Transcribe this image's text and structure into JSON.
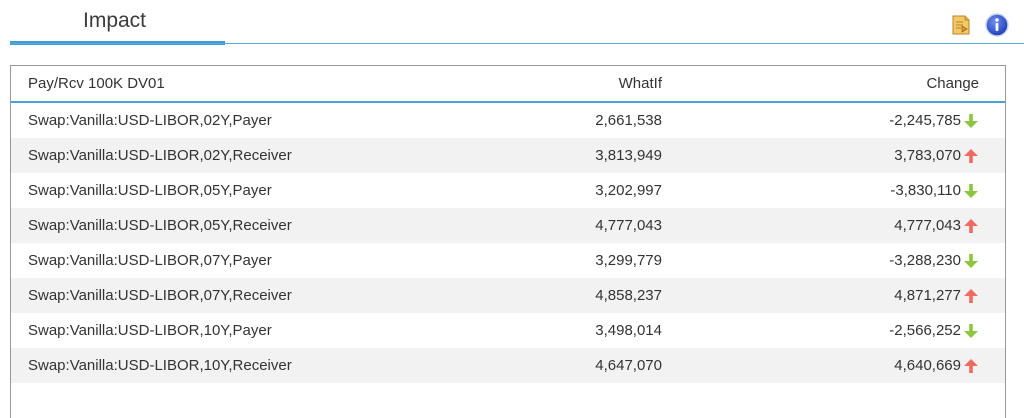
{
  "header": {
    "tab_label": "Impact",
    "icons": [
      "export-icon",
      "info-icon"
    ]
  },
  "table": {
    "columns": {
      "name": "Pay/Rcv 100K DV01",
      "whatif": "WhatIf",
      "change": "Change"
    },
    "rows": [
      {
        "name": "Swap:Vanilla:USD-LIBOR,02Y,Payer",
        "whatif": "2,661,538",
        "change": "-2,245,785",
        "direction": "down"
      },
      {
        "name": "Swap:Vanilla:USD-LIBOR,02Y,Receiver",
        "whatif": "3,813,949",
        "change": "3,783,070",
        "direction": "up"
      },
      {
        "name": "Swap:Vanilla:USD-LIBOR,05Y,Payer",
        "whatif": "3,202,997",
        "change": "-3,830,110",
        "direction": "down"
      },
      {
        "name": "Swap:Vanilla:USD-LIBOR,05Y,Receiver",
        "whatif": "4,777,043",
        "change": "4,777,043",
        "direction": "up"
      },
      {
        "name": "Swap:Vanilla:USD-LIBOR,07Y,Payer",
        "whatif": "3,299,779",
        "change": "-3,288,230",
        "direction": "down"
      },
      {
        "name": "Swap:Vanilla:USD-LIBOR,07Y,Receiver",
        "whatif": "4,858,237",
        "change": "4,871,277",
        "direction": "up"
      },
      {
        "name": "Swap:Vanilla:USD-LIBOR,10Y,Payer",
        "whatif": "3,498,014",
        "change": "-2,566,252",
        "direction": "down"
      },
      {
        "name": "Swap:Vanilla:USD-LIBOR,10Y,Receiver",
        "whatif": "4,647,070",
        "change": "4,640,669",
        "direction": "up"
      }
    ]
  },
  "colors": {
    "accent": "#3d9fd6",
    "up_arrow": "#f06a5f",
    "down_arrow": "#8cc63f",
    "stripe": "#f2f2f2"
  }
}
